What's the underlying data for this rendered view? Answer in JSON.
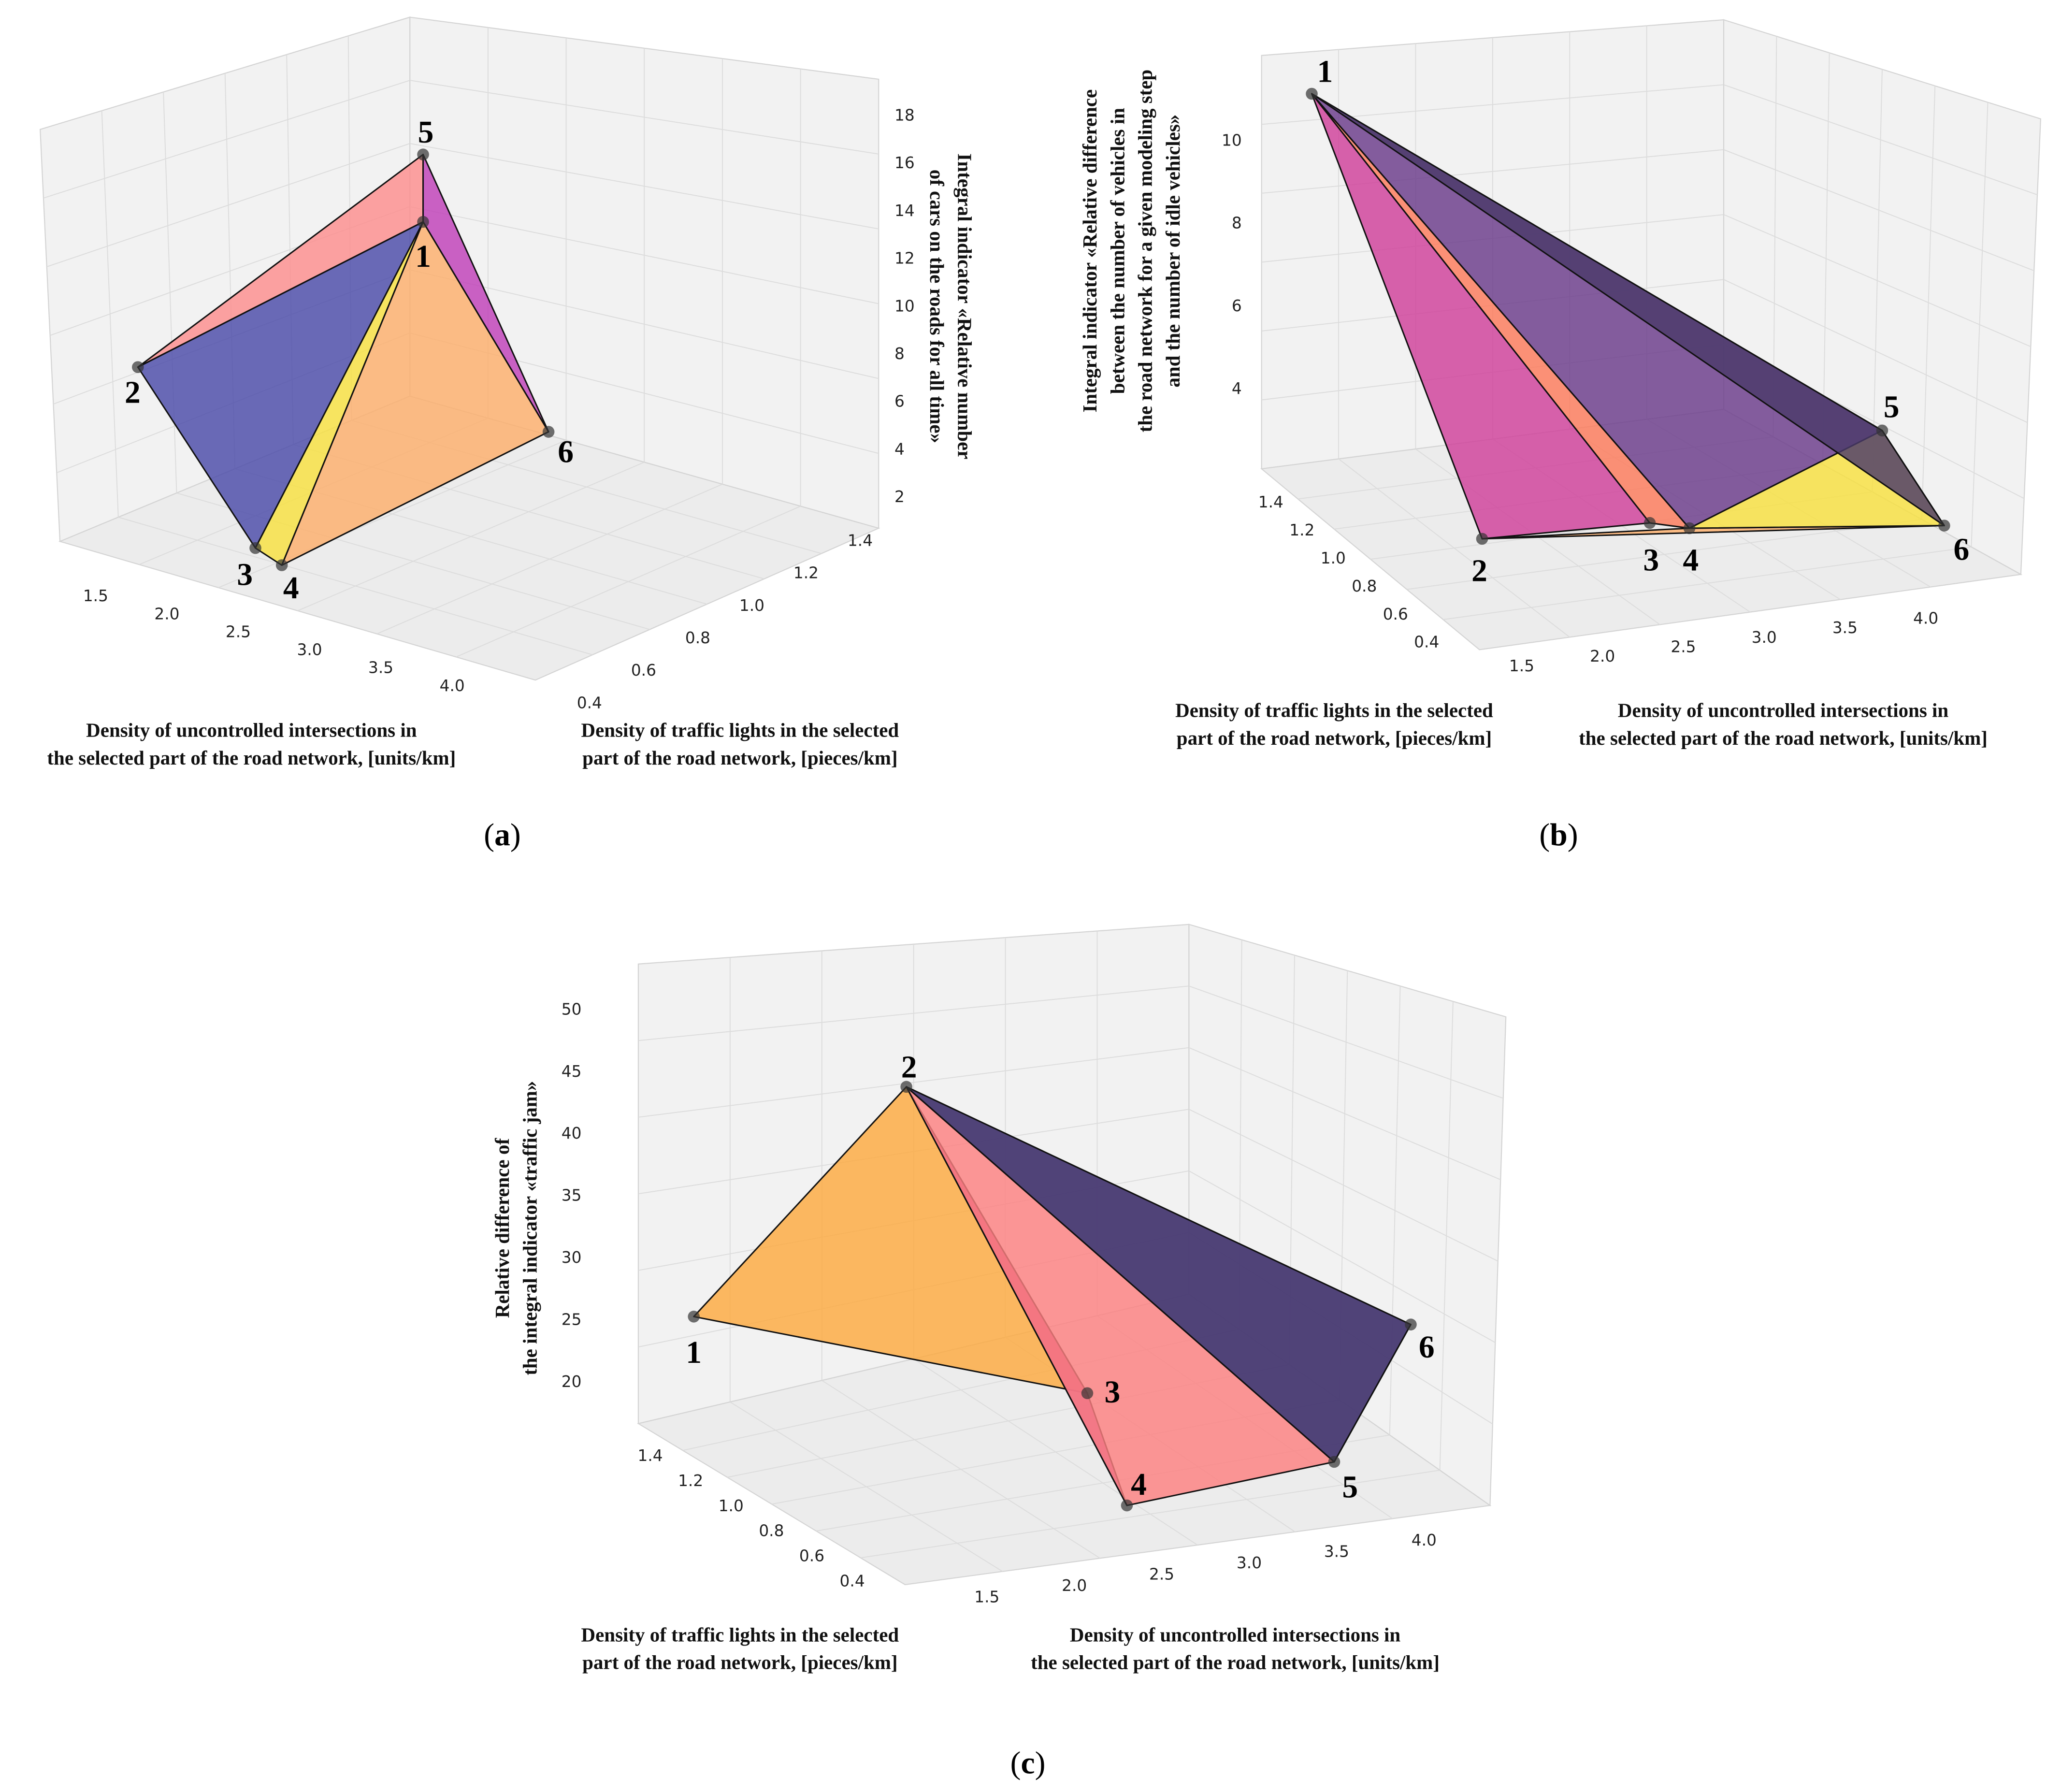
{
  "chart_data": [
    {
      "id": "a",
      "type": "3d-polyhedron",
      "caption": "a",
      "xlabel": [
        "Density of uncontrolled intersections in",
        "the selected part of the road network, [units/km]"
      ],
      "ylabel": [
        "Density of traffic lights in the selected",
        "part of the road network, [pieces/km]"
      ],
      "zlabel": [
        "Integral indicator «Relative number",
        "of cars on the roads for all time»"
      ],
      "xticks": [
        "1.5",
        "2.0",
        "2.5",
        "3.0",
        "3.5",
        "4.0"
      ],
      "yticks": [
        "0.4",
        "0.6",
        "0.8",
        "1.0",
        "1.2",
        "1.4"
      ],
      "zticks": [
        "18",
        "16",
        "14",
        "12",
        "10",
        "8",
        "6",
        "4",
        "2"
      ],
      "points": [
        {
          "label": "1",
          "x": 2.2,
          "y": 1.4,
          "z": 13.5
        },
        {
          "label": "2",
          "x": 1.2,
          "y": 1.4,
          "z": 7.5
        },
        {
          "label": "3",
          "x": 2.2,
          "y": 0.4,
          "z": 2.2
        },
        {
          "label": "4",
          "x": 2.4,
          "y": 0.4,
          "z": 2.0
        },
        {
          "label": "5",
          "x": 2.2,
          "y": 1.5,
          "z": 16.5
        },
        {
          "label": "6",
          "x": 4.2,
          "y": 1.2,
          "z": 4.5
        }
      ],
      "faces": [
        {
          "v": [
            "2",
            "5",
            "1"
          ],
          "color": "#fc8d8d"
        },
        {
          "v": [
            "5",
            "1",
            "6"
          ],
          "color": "#c040b8"
        },
        {
          "v": [
            "2",
            "1",
            "3"
          ],
          "color": "#4a4aa8"
        },
        {
          "v": [
            "3",
            "1",
            "4"
          ],
          "color": "#f8e040"
        },
        {
          "v": [
            "1",
            "4",
            "6"
          ],
          "color": "#fdae6b"
        }
      ]
    },
    {
      "id": "b",
      "type": "3d-polyhedron",
      "caption": "b",
      "xlabel": [
        "Density of uncontrolled intersections in",
        "the selected part of the road network, [units/km]"
      ],
      "ylabel": [
        "Density of traffic lights in the selected",
        "part of the road network, [pieces/km]"
      ],
      "zlabel": [
        "Integral indicator «Relative difference",
        "between the number of vehicles in",
        "the road network for a given modeling step",
        "and the number of idle vehicles»"
      ],
      "xticks": [
        "1.5",
        "2.0",
        "2.5",
        "3.0",
        "3.5",
        "4.0"
      ],
      "yticks": [
        "1.4",
        "1.2",
        "1.0",
        "0.8",
        "0.6",
        "0.4"
      ],
      "zticks": [
        "10",
        "8",
        "6",
        "4"
      ],
      "points": [
        {
          "label": "1",
          "x": 1.2,
          "y": 1.5,
          "z": 11.0
        },
        {
          "label": "2",
          "x": 1.2,
          "y": 0.4,
          "z": 2.0
        },
        {
          "label": "3",
          "x": 2.2,
          "y": 0.4,
          "z": 2.3
        },
        {
          "label": "4",
          "x": 2.4,
          "y": 0.4,
          "z": 2.2
        },
        {
          "label": "5",
          "x": 4.2,
          "y": 1.2,
          "z": 3.0
        },
        {
          "label": "6",
          "x": 4.2,
          "y": 0.4,
          "z": 2.5
        }
      ],
      "faces": [
        {
          "v": [
            "2",
            "4",
            "6"
          ],
          "color": "#fdae6b"
        },
        {
          "v": [
            "1",
            "2",
            "3"
          ],
          "color": "#d0409a"
        },
        {
          "v": [
            "1",
            "3",
            "4"
          ],
          "color": "#fc7a5a"
        },
        {
          "v": [
            "1",
            "4",
            "5"
          ],
          "color": "#6a3a8a"
        },
        {
          "v": [
            "5",
            "6",
            "4"
          ],
          "color": "#f8e040"
        },
        {
          "v": [
            "1",
            "5",
            "6"
          ],
          "color": "#4a3a6a"
        }
      ]
    },
    {
      "id": "c",
      "type": "3d-polyhedron",
      "caption": "c",
      "xlabel": [
        "Density of uncontrolled intersections in",
        "the selected part of the road network, [units/km]"
      ],
      "ylabel": [
        "Density of traffic lights in the selected",
        "part of the road network, [pieces/km]"
      ],
      "zlabel": [
        "Relative difference of",
        "the integral indicator «traffic jam»"
      ],
      "xticks": [
        "1.5",
        "2.0",
        "2.5",
        "3.0",
        "3.5",
        "4.0"
      ],
      "yticks": [
        "1.4",
        "1.2",
        "1.0",
        "0.8",
        "0.6",
        "0.4"
      ],
      "zticks": [
        "50",
        "45",
        "40",
        "35",
        "30",
        "25",
        "20"
      ],
      "points": [
        {
          "label": "1",
          "x": 1.2,
          "y": 1.4,
          "z": 25.5
        },
        {
          "label": "2",
          "x": 1.2,
          "y": 0.4,
          "z": 44.0
        },
        {
          "label": "3",
          "x": 2.2,
          "y": 1.2,
          "z": 19.0
        },
        {
          "label": "4",
          "x": 2.2,
          "y": 0.4,
          "z": 17.5
        },
        {
          "label": "5",
          "x": 3.8,
          "y": 0.4,
          "z": 19.5
        },
        {
          "label": "6",
          "x": 4.2,
          "y": 0.6,
          "z": 28.0
        }
      ],
      "faces": [
        {
          "v": [
            "1",
            "2",
            "3"
          ],
          "color": "#fdaa40"
        },
        {
          "v": [
            "2",
            "3",
            "4"
          ],
          "color": "#c03090"
        },
        {
          "v": [
            "2",
            "4",
            "5"
          ],
          "color": "#fc8080"
        },
        {
          "v": [
            "2",
            "5",
            "6"
          ],
          "color": "#4a4aa8"
        },
        {
          "v": [
            "2",
            "6",
            "5"
          ],
          "color": "#4a3a6a"
        }
      ]
    }
  ]
}
